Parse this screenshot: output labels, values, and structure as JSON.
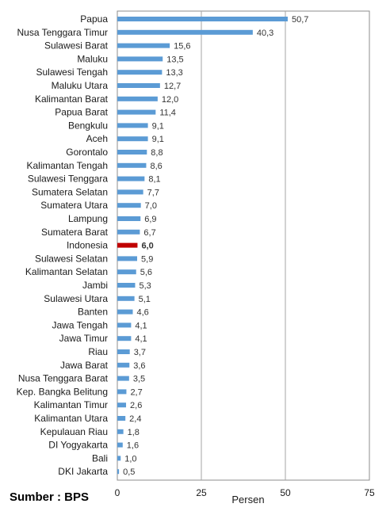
{
  "source_label": "Sumber : BPS",
  "chart_data": {
    "type": "bar",
    "orientation": "horizontal",
    "title": "",
    "xlabel": "Persen",
    "ylabel": "",
    "xlim": [
      0,
      75
    ],
    "xticks": [
      "0",
      "25",
      "50",
      "75"
    ],
    "grid": true,
    "legend": "none",
    "bar_color": "#5b9bd5",
    "highlight_color": "#c00000",
    "highlight_category": "Indonesia",
    "categories": [
      "Papua",
      "Nusa Tenggara Timur",
      "Sulawesi Barat",
      "Maluku",
      "Sulawesi Tengah",
      "Maluku Utara",
      "Kalimantan Barat",
      "Papua Barat",
      "Bengkulu",
      "Aceh",
      "Gorontalo",
      "Kalimantan Tengah",
      "Sulawesi Tenggara",
      "Sumatera Selatan",
      "Sumatera Utara",
      "Lampung",
      "Sumatera Barat",
      "Indonesia",
      "Sulawesi Selatan",
      "Kalimantan Selatan",
      "Jambi",
      "Sulawesi Utara",
      "Banten",
      "Jawa Tengah",
      "Jawa Timur",
      "Riau",
      "Jawa Barat",
      "Nusa Tenggara Barat",
      "Kep. Bangka Belitung",
      "Kalimantan Timur",
      "Kalimantan Utara",
      "Kepulauan Riau",
      "DI Yogyakarta",
      "Bali",
      "DKI Jakarta"
    ],
    "values": [
      50.7,
      40.3,
      15.6,
      13.5,
      13.3,
      12.7,
      12.0,
      11.4,
      9.1,
      9.1,
      8.8,
      8.6,
      8.1,
      7.7,
      7.0,
      6.9,
      6.7,
      6.0,
      5.9,
      5.6,
      5.3,
      5.1,
      4.6,
      4.1,
      4.1,
      3.7,
      3.6,
      3.5,
      2.7,
      2.6,
      2.4,
      1.8,
      1.6,
      1.0,
      0.5
    ],
    "value_labels": [
      "50,7",
      "40,3",
      "15,6",
      "13,5",
      "13,3",
      "12,7",
      "12,0",
      "11,4",
      "9,1",
      "9,1",
      "8,8",
      "8,6",
      "8,1",
      "7,7",
      "7,0",
      "6,9",
      "6,7",
      "6,0",
      "5,9",
      "5,6",
      "5,3",
      "5,1",
      "4,6",
      "4,1",
      "4,1",
      "3,7",
      "3,6",
      "3,5",
      "2,7",
      "2,6",
      "2,4",
      "1,8",
      "1,6",
      "1,0",
      "0,5"
    ]
  }
}
